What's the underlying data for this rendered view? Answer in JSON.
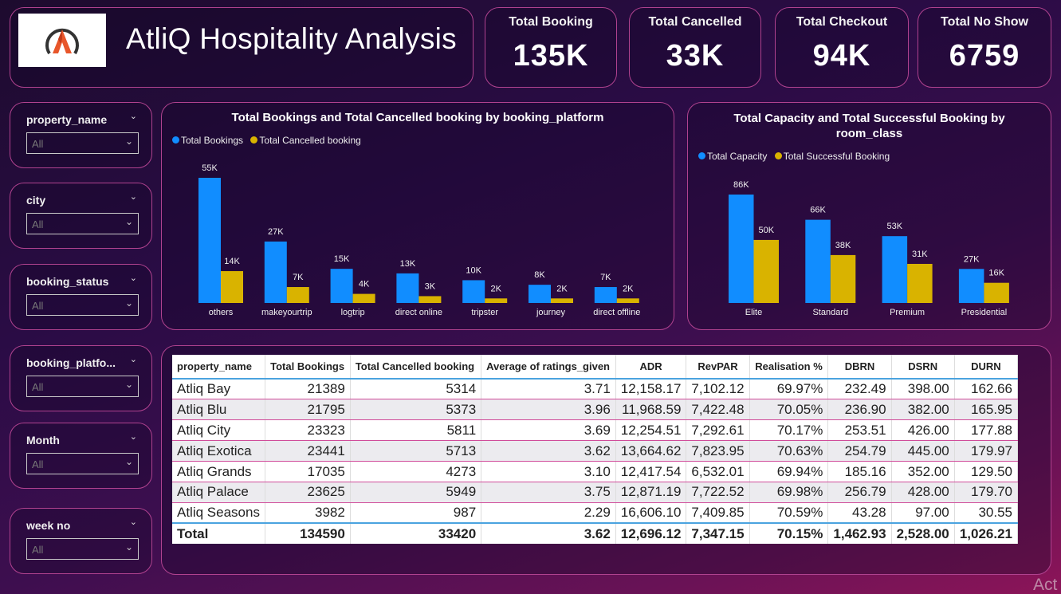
{
  "header": {
    "title": "AtliQ Hospitality Analysis"
  },
  "kpis": [
    {
      "label": "Total Booking",
      "value": "135K"
    },
    {
      "label": "Total Cancelled",
      "value": "33K"
    },
    {
      "label": "Total Checkout",
      "value": "94K"
    },
    {
      "label": "Total No Show",
      "value": "6759"
    }
  ],
  "slicers": [
    {
      "label": "property_name",
      "value": "All"
    },
    {
      "label": "city",
      "value": "All"
    },
    {
      "label": "booking_status",
      "value": "All"
    },
    {
      "label": "booking_platfo...",
      "value": "All"
    },
    {
      "label": "Month",
      "value": "All"
    },
    {
      "label": "week no",
      "value": "All"
    }
  ],
  "colors": {
    "blue": "#118dff",
    "gold": "#d9b300",
    "accent": "#b0428f"
  },
  "chart_data": [
    {
      "type": "bar",
      "title": "Total Bookings and Total Cancelled booking by booking_platform",
      "categories": [
        "others",
        "makeyourtrip",
        "logtrip",
        "direct online",
        "tripster",
        "journey",
        "direct offline"
      ],
      "series": [
        {
          "name": "Total Bookings",
          "values": [
            55000,
            27000,
            15000,
            13000,
            10000,
            8000,
            7000
          ],
          "labels": [
            "55K",
            "27K",
            "15K",
            "13K",
            "10K",
            "8K",
            "7K"
          ],
          "color": "#118dff"
        },
        {
          "name": "Total Cancelled booking",
          "values": [
            14000,
            7000,
            4000,
            3000,
            2000,
            2000,
            2000
          ],
          "labels": [
            "14K",
            "7K",
            "4K",
            "3K",
            "2K",
            "2K",
            "2K"
          ],
          "color": "#d9b300"
        }
      ],
      "ylim": [
        0,
        55000
      ],
      "legend": "top-left"
    },
    {
      "type": "bar",
      "title": "Total Capacity and Total Successful Booking by room_class",
      "categories": [
        "Elite",
        "Standard",
        "Premium",
        "Presidential"
      ],
      "series": [
        {
          "name": "Total Capacity",
          "values": [
            86000,
            66000,
            53000,
            27000
          ],
          "labels": [
            "86K",
            "66K",
            "53K",
            "27K"
          ],
          "color": "#118dff"
        },
        {
          "name": "Total Successful Booking",
          "values": [
            50000,
            38000,
            31000,
            16000
          ],
          "labels": [
            "50K",
            "38K",
            "31K",
            "16K"
          ],
          "color": "#d9b300"
        }
      ],
      "ylim": [
        0,
        86000
      ],
      "legend": "top-left"
    },
    {
      "type": "table",
      "columns": [
        "property_name",
        "Total Bookings",
        "Total Cancelled booking",
        "Average of ratings_given",
        "ADR",
        "RevPAR",
        "Realisation %",
        "DBRN",
        "DSRN",
        "DURN"
      ],
      "rows": [
        [
          "Atliq Bay",
          "21389",
          "5314",
          "3.71",
          "12,158.17",
          "7,102.12",
          "69.97%",
          "232.49",
          "398.00",
          "162.66"
        ],
        [
          "Atliq Blu",
          "21795",
          "5373",
          "3.96",
          "11,968.59",
          "7,422.48",
          "70.05%",
          "236.90",
          "382.00",
          "165.95"
        ],
        [
          "Atliq City",
          "23323",
          "5811",
          "3.69",
          "12,254.51",
          "7,292.61",
          "70.17%",
          "253.51",
          "426.00",
          "177.88"
        ],
        [
          "Atliq Exotica",
          "23441",
          "5713",
          "3.62",
          "13,664.62",
          "7,823.95",
          "70.63%",
          "254.79",
          "445.00",
          "179.97"
        ],
        [
          "Atliq Grands",
          "17035",
          "4273",
          "3.10",
          "12,417.54",
          "6,532.01",
          "69.94%",
          "185.16",
          "352.00",
          "129.50"
        ],
        [
          "Atliq Palace",
          "23625",
          "5949",
          "3.75",
          "12,871.19",
          "7,722.52",
          "69.98%",
          "256.79",
          "428.00",
          "179.70"
        ],
        [
          "Atliq Seasons",
          "3982",
          "987",
          "2.29",
          "16,606.10",
          "7,409.85",
          "70.59%",
          "43.28",
          "97.00",
          "30.55"
        ]
      ],
      "total": [
        "Total",
        "134590",
        "33420",
        "3.62",
        "12,696.12",
        "7,347.15",
        "70.15%",
        "1,462.93",
        "2,528.00",
        "1,026.21"
      ]
    }
  ],
  "watermark": "Act"
}
